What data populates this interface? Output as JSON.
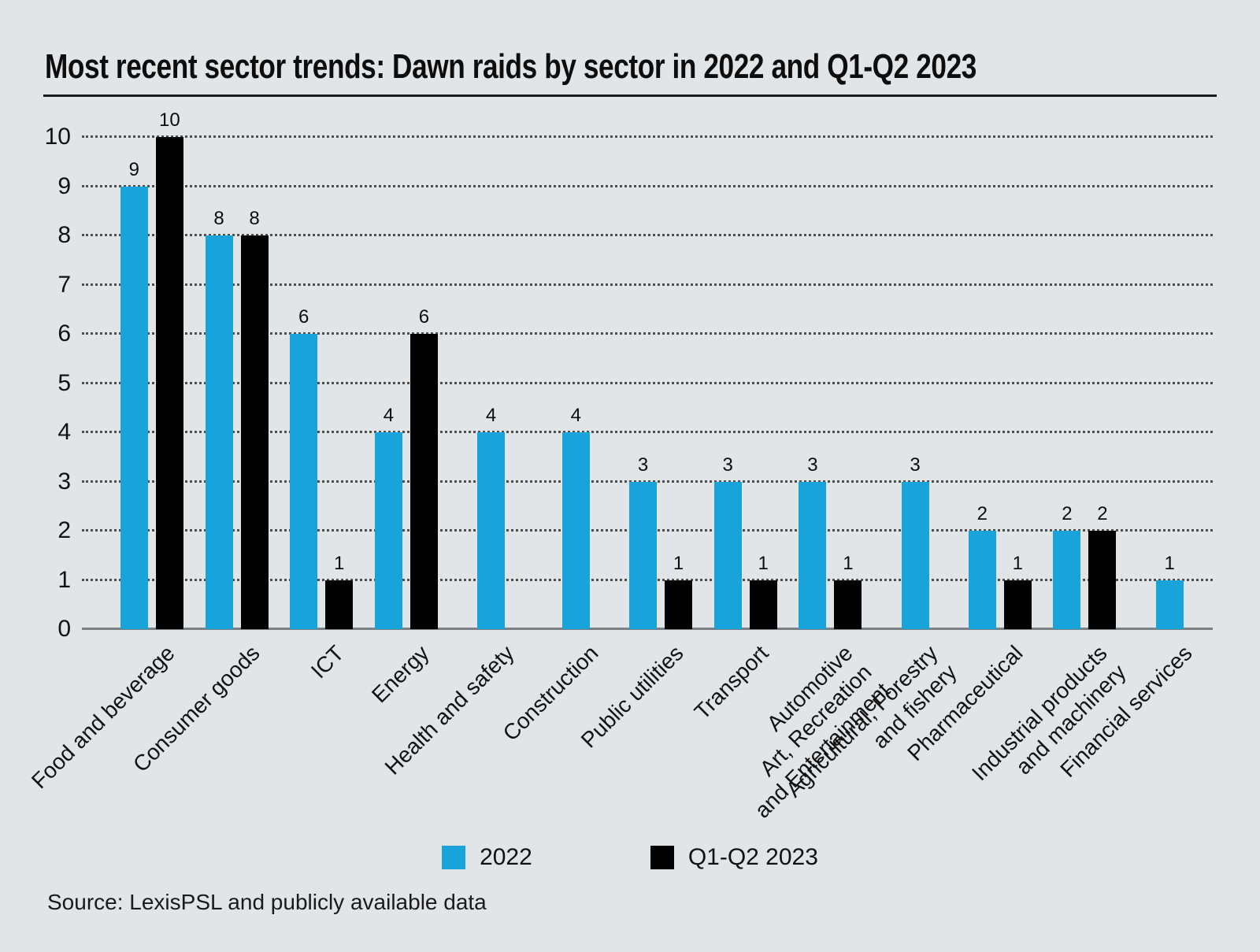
{
  "title": "Most recent sector trends: Dawn raids by sector in 2022 and Q1-Q2 2023",
  "source": "Source: LexisPSL and publicly available data",
  "colors": {
    "background": "#e2e5e8",
    "bar_2022": "#18a3db",
    "bar_2023": "#000000",
    "gridline": "#4e4e4e",
    "axis": "#7b8084",
    "text": "#111111"
  },
  "legend": [
    {
      "label": "2022",
      "color": "#18a3db"
    },
    {
      "label": "Q1-Q2 2023",
      "color": "#000000"
    }
  ],
  "chart_data": {
    "type": "bar",
    "title": "Most recent sector trends: Dawn raids by sector in 2022 and Q1-Q2 2023",
    "xlabel": "",
    "ylabel": "",
    "ylim": [
      0,
      10
    ],
    "yticks": [
      0,
      1,
      2,
      3,
      4,
      5,
      6,
      7,
      8,
      9,
      10
    ],
    "grid": "horizontal-dotted",
    "legend_position": "bottom",
    "categories": [
      {
        "label": "Food and beverage",
        "lines": [
          "Food and beverage"
        ]
      },
      {
        "label": "Consumer goods",
        "lines": [
          "Consumer goods"
        ]
      },
      {
        "label": "ICT",
        "lines": [
          "ICT"
        ]
      },
      {
        "label": "Energy",
        "lines": [
          "Energy"
        ]
      },
      {
        "label": "Health and safety",
        "lines": [
          "Health and safety"
        ]
      },
      {
        "label": "Construction",
        "lines": [
          "Construction"
        ]
      },
      {
        "label": "Public utilities",
        "lines": [
          "Public utilities"
        ]
      },
      {
        "label": "Transport",
        "lines": [
          "Transport"
        ]
      },
      {
        "label": "Automotive Art, Recreation and Entertainment",
        "lines": [
          "Automotive",
          "Art, Recreation",
          "and Entertainment"
        ]
      },
      {
        "label": "Agricultural, Forestry and fishery",
        "lines": [
          "Agricultural, Forestry",
          "and fishery"
        ]
      },
      {
        "label": "Pharmaceutical",
        "lines": [
          "Pharmaceutical"
        ]
      },
      {
        "label": "Industrial products and machinery",
        "lines": [
          "Industrial products",
          "and machinery"
        ]
      },
      {
        "label": "Financial services",
        "lines": [
          "Financial services"
        ]
      }
    ],
    "series": [
      {
        "name": "2022",
        "color": "#18a3db",
        "values": [
          9,
          8,
          6,
          4,
          4,
          4,
          3,
          3,
          3,
          3,
          2,
          2,
          1
        ]
      },
      {
        "name": "Q1-Q2 2023",
        "color": "#000000",
        "values": [
          10,
          8,
          1,
          6,
          null,
          null,
          1,
          1,
          1,
          null,
          1,
          2,
          null
        ]
      }
    ]
  }
}
